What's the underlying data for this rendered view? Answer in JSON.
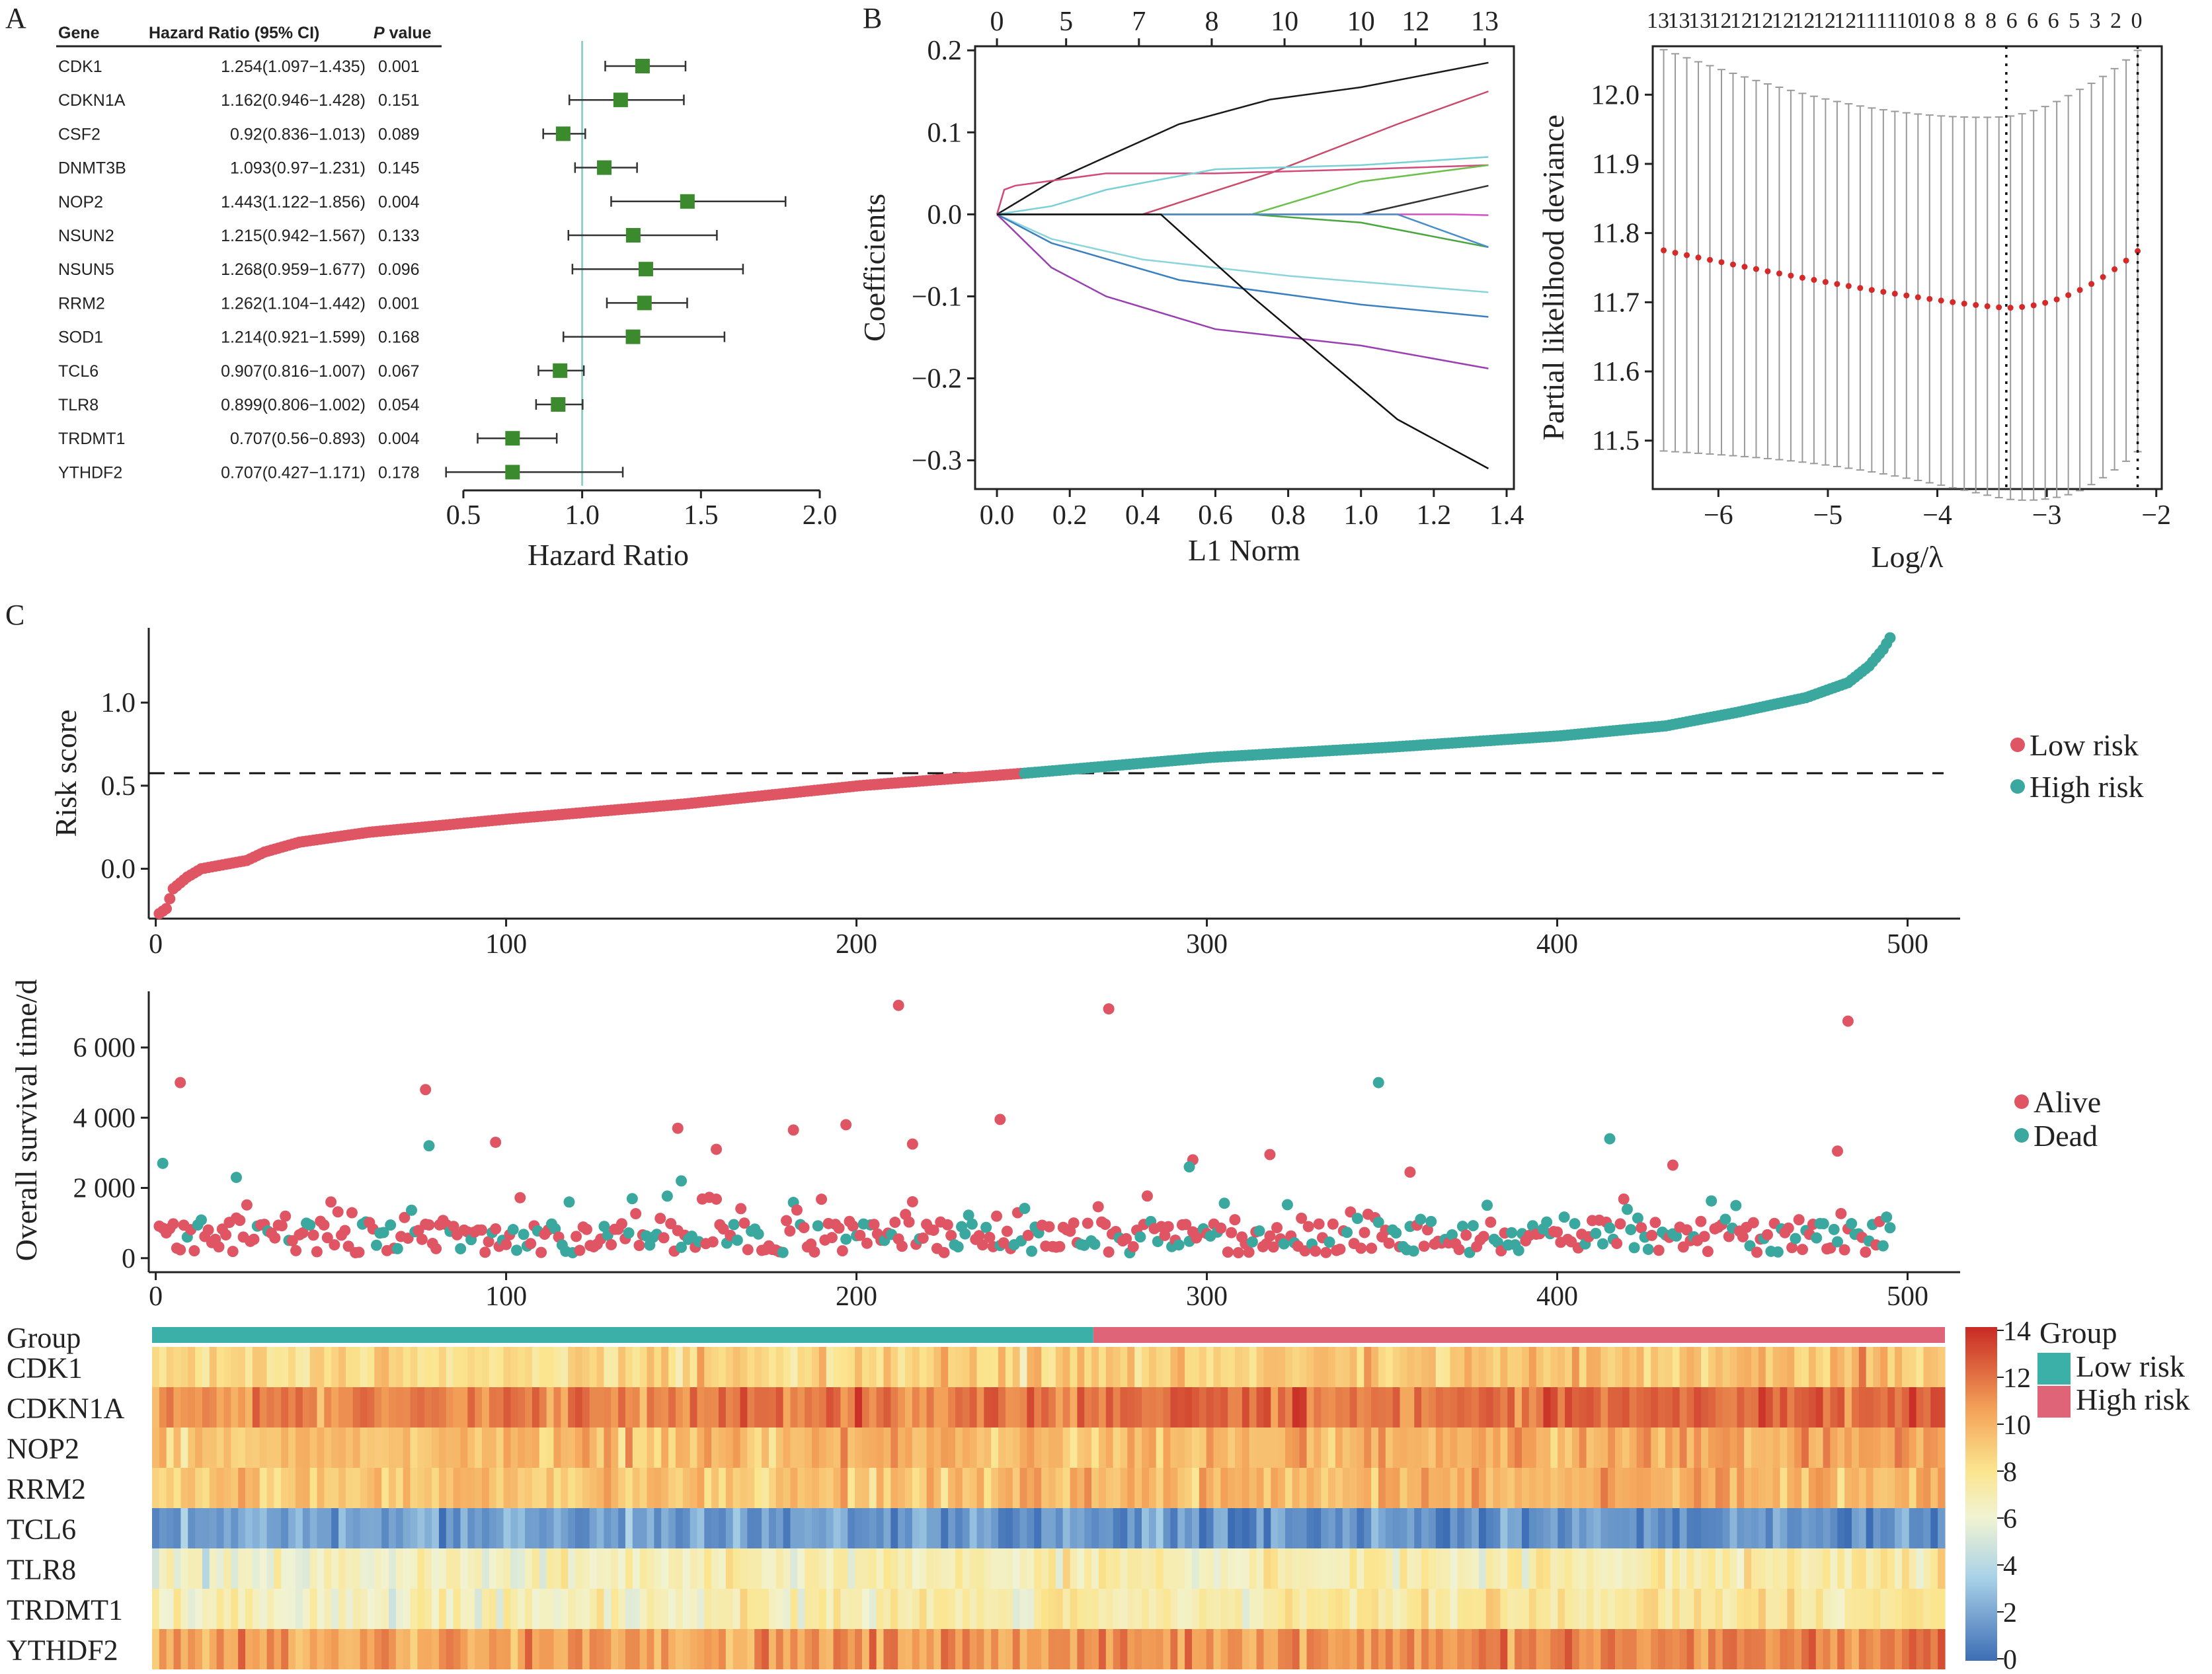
{
  "figure": {
    "panel_labels": {
      "A": "A",
      "B": "B",
      "C": "C"
    }
  },
  "chart_data": [
    {
      "id": "forest",
      "type": "forest",
      "table_headers": {
        "gene": "Gene",
        "hr": "Hazard Ratio (95% CI)",
        "p_italic": "P",
        "p_rest": " value"
      },
      "rows": [
        {
          "gene": "CDK1",
          "hr_text": "1.254(1.097−1.435)",
          "p_text": "0.001",
          "hr": 1.254,
          "lo": 1.097,
          "hi": 1.435
        },
        {
          "gene": "CDKN1A",
          "hr_text": "1.162(0.946−1.428)",
          "p_text": "0.151",
          "hr": 1.162,
          "lo": 0.946,
          "hi": 1.428
        },
        {
          "gene": "CSF2",
          "hr_text": "0.92(0.836−1.013)",
          "p_text": "0.089",
          "hr": 0.92,
          "lo": 0.836,
          "hi": 1.013
        },
        {
          "gene": "DNMT3B",
          "hr_text": "1.093(0.97−1.231)",
          "p_text": "0.145",
          "hr": 1.093,
          "lo": 0.97,
          "hi": 1.231
        },
        {
          "gene": "NOP2",
          "hr_text": "1.443(1.122−1.856)",
          "p_text": "0.004",
          "hr": 1.443,
          "lo": 1.122,
          "hi": 1.856
        },
        {
          "gene": "NSUN2",
          "hr_text": "1.215(0.942−1.567)",
          "p_text": "0.133",
          "hr": 1.215,
          "lo": 0.942,
          "hi": 1.567
        },
        {
          "gene": "NSUN5",
          "hr_text": "1.268(0.959−1.677)",
          "p_text": "0.096",
          "hr": 1.268,
          "lo": 0.959,
          "hi": 1.677
        },
        {
          "gene": "RRM2",
          "hr_text": "1.262(1.104−1.442)",
          "p_text": "0.001",
          "hr": 1.262,
          "lo": 1.104,
          "hi": 1.442
        },
        {
          "gene": "SOD1",
          "hr_text": "1.214(0.921−1.599)",
          "p_text": "0.168",
          "hr": 1.214,
          "lo": 0.921,
          "hi": 1.599
        },
        {
          "gene": "TCL6",
          "hr_text": "0.907(0.816−1.007)",
          "p_text": "0.067",
          "hr": 0.907,
          "lo": 0.816,
          "hi": 1.007
        },
        {
          "gene": "TLR8",
          "hr_text": "0.899(0.806−1.002)",
          "p_text": "0.054",
          "hr": 0.899,
          "lo": 0.806,
          "hi": 1.002
        },
        {
          "gene": "TRDMT1",
          "hr_text": "0.707(0.56−0.893)",
          "p_text": "0.004",
          "hr": 0.707,
          "lo": 0.56,
          "hi": 0.893
        },
        {
          "gene": "YTHDF2",
          "hr_text": "0.707(0.427−1.171)",
          "p_text": "0.178",
          "hr": 0.707,
          "lo": 0.427,
          "hi": 1.171
        }
      ],
      "xlabel": "Hazard Ratio",
      "xlim": [
        0.4,
        2.0
      ],
      "xticks": [
        0.5,
        1.0,
        1.5,
        2.0
      ],
      "xtick_labels": [
        "0.5",
        "1.0",
        "1.5",
        "2.0"
      ],
      "reference_line": 1.0,
      "marker_color": "#3b8a2e",
      "reference_color": "#8fd0c2"
    },
    {
      "id": "lasso_coef",
      "type": "line",
      "xlabel": "L1 Norm",
      "ylabel": "Coefficients",
      "xlim": [
        -0.06,
        1.42
      ],
      "ylim": [
        -0.335,
        0.205
      ],
      "xticks": [
        0.0,
        0.2,
        0.4,
        0.6,
        0.8,
        1.0,
        1.2,
        1.4
      ],
      "xtick_labels": [
        "0.0",
        "0.2",
        "0.4",
        "0.6",
        "0.8",
        "1.0",
        "1.2",
        "1.4"
      ],
      "yticks": [
        -0.3,
        -0.2,
        -0.1,
        0.0,
        0.1,
        0.2
      ],
      "ytick_labels": [
        "−0.3",
        "−0.2",
        "−0.1",
        "0.0",
        "0.1",
        "0.2"
      ],
      "top_ticks": [
        0.0,
        0.19,
        0.39,
        0.59,
        0.79,
        1.0,
        1.15,
        1.34
      ],
      "top_tick_labels": [
        "0",
        "5",
        "7",
        "8",
        "10",
        "10",
        "12",
        "13"
      ],
      "series": [
        {
          "color": "#1a1a1a",
          "x": [
            0,
            0.15,
            0.5,
            0.75,
            1.0,
            1.35
          ],
          "y": [
            0,
            0.04,
            0.11,
            0.14,
            0.155,
            0.185
          ]
        },
        {
          "color": "#c94a6a",
          "x": [
            0,
            0.4,
            0.75,
            1.1,
            1.35
          ],
          "y": [
            0,
            0,
            0.05,
            0.11,
            0.15
          ]
        },
        {
          "color": "#d24a7a",
          "x": [
            0,
            0.02,
            0.05,
            0.3,
            0.6,
            1.0,
            1.35
          ],
          "y": [
            0,
            0.03,
            0.035,
            0.05,
            0.05,
            0.055,
            0.06
          ]
        },
        {
          "color": "#7ad0d8",
          "x": [
            0,
            0.15,
            0.3,
            0.6,
            1.0,
            1.35
          ],
          "y": [
            0,
            0.01,
            0.03,
            0.055,
            0.06,
            0.07
          ]
        },
        {
          "color": "#6cbf4a",
          "x": [
            0,
            0.7,
            1.0,
            1.35
          ],
          "y": [
            0,
            0,
            0.04,
            0.06
          ]
        },
        {
          "color": "#333333",
          "x": [
            0,
            1.0,
            1.35
          ],
          "y": [
            0,
            0,
            0.035
          ]
        },
        {
          "color": "#d451c4",
          "x": [
            0,
            1.25,
            1.35
          ],
          "y": [
            0,
            0,
            -0.001
          ]
        },
        {
          "color": "#4aa63e",
          "x": [
            0,
            0.7,
            1.0,
            1.35
          ],
          "y": [
            0,
            0,
            -0.01,
            -0.04
          ]
        },
        {
          "color": "#4a8dc9",
          "x": [
            0,
            1.1,
            1.35
          ],
          "y": [
            0,
            0,
            -0.04
          ]
        },
        {
          "color": "#8ad4dc",
          "x": [
            0,
            0.15,
            0.4,
            0.8,
            1.35
          ],
          "y": [
            0,
            -0.03,
            -0.055,
            -0.075,
            -0.095
          ]
        },
        {
          "color": "#3a7fc0",
          "x": [
            0,
            0.15,
            0.5,
            1.0,
            1.35
          ],
          "y": [
            0,
            -0.035,
            -0.08,
            -0.11,
            -0.125
          ]
        },
        {
          "color": "#9a3fb0",
          "x": [
            0,
            0.15,
            0.3,
            0.6,
            1.0,
            1.35
          ],
          "y": [
            0,
            -0.065,
            -0.1,
            -0.14,
            -0.16,
            -0.188
          ]
        },
        {
          "color": "#111111",
          "x": [
            0,
            0.45,
            0.7,
            1.1,
            1.35
          ],
          "y": [
            0,
            0,
            -0.1,
            -0.25,
            -0.31
          ]
        }
      ]
    },
    {
      "id": "lasso_cv",
      "type": "scatter",
      "xlabel": "Log/λ",
      "ylabel": "Partial likelihood deviance",
      "xlim": [
        -6.6,
        -1.95
      ],
      "ylim": [
        11.43,
        12.07
      ],
      "xticks": [
        -6,
        -5,
        -4,
        -3,
        -2
      ],
      "xtick_labels": [
        "−6",
        "−5",
        "−4",
        "−3",
        "−2"
      ],
      "yticks": [
        11.5,
        11.6,
        11.7,
        11.8,
        11.9,
        12.0
      ],
      "ytick_labels": [
        "11.5",
        "11.6",
        "11.7",
        "11.8",
        "11.9",
        "12.0"
      ],
      "top_labels": [
        "13",
        "13",
        "13",
        "12",
        "12",
        "12",
        "12",
        "12",
        "12",
        "12",
        "11",
        "11",
        "10",
        "10",
        "8",
        "8",
        "8",
        "6",
        "6",
        "6",
        "5",
        "3",
        "2",
        "0"
      ],
      "vlines": [
        -3.37,
        -2.17
      ],
      "curve": {
        "x0": -6.5,
        "x1": -2.17,
        "n": 42,
        "min_x": -3.37,
        "y_start": 11.775,
        "y_min": 11.692,
        "y_end": 11.774
      },
      "error_half": {
        "min": 0.263,
        "max": 0.29
      },
      "point_color": "#d42a2a",
      "bar_color": "#9a9a9a"
    },
    {
      "id": "risk_score",
      "type": "scatter",
      "ylabel": "Risk score",
      "n": 495,
      "xlim": [
        -2,
        515
      ],
      "ylim": [
        -0.3,
        1.45
      ],
      "xticks": [
        0,
        100,
        200,
        300,
        400,
        500
      ],
      "xtick_labels": [
        "0",
        "100",
        "200",
        "300",
        "400",
        "500"
      ],
      "yticks": [
        0.0,
        0.5,
        1.0
      ],
      "ytick_labels": [
        "0.0",
        "0.5",
        "1.0"
      ],
      "cutoff": 0.575,
      "split_index": 247,
      "anchors": [
        [
          0,
          -0.27
        ],
        [
          2,
          -0.24
        ],
        [
          4,
          -0.12
        ],
        [
          8,
          -0.05
        ],
        [
          12,
          0.0
        ],
        [
          25,
          0.05
        ],
        [
          30,
          0.1
        ],
        [
          40,
          0.16
        ],
        [
          60,
          0.22
        ],
        [
          100,
          0.3
        ],
        [
          150,
          0.39
        ],
        [
          200,
          0.5
        ],
        [
          247,
          0.575
        ],
        [
          300,
          0.67
        ],
        [
          350,
          0.73
        ],
        [
          400,
          0.8
        ],
        [
          430,
          0.86
        ],
        [
          450,
          0.94
        ],
        [
          470,
          1.03
        ],
        [
          482,
          1.12
        ],
        [
          488,
          1.22
        ],
        [
          492,
          1.32
        ],
        [
          494,
          1.39
        ]
      ],
      "legend": [
        "Low risk",
        "High risk"
      ],
      "colors": {
        "low": "#e05563",
        "high": "#3aa89e"
      }
    },
    {
      "id": "survival",
      "type": "scatter",
      "ylabel": "Overall survival time/d",
      "xlim": [
        -2,
        515
      ],
      "ylim": [
        -400,
        7600
      ],
      "xticks": [
        0,
        100,
        200,
        300,
        400,
        500
      ],
      "xtick_labels": [
        "0",
        "100",
        "200",
        "300",
        "400",
        "500"
      ],
      "yticks": [
        0,
        2000,
        4000,
        6000
      ],
      "ytick_labels": [
        "0",
        "2 000",
        "4 000",
        "6 000"
      ],
      "legend": [
        "Alive",
        "Dead"
      ],
      "colors": {
        "alive": "#e05563",
        "dead": "#3aa89e"
      },
      "highlights_alive": [
        [
          7,
          5000
        ],
        [
          77,
          4800
        ],
        [
          97,
          3300
        ],
        [
          149,
          3700
        ],
        [
          160,
          3100
        ],
        [
          182,
          3650
        ],
        [
          197,
          3800
        ],
        [
          212,
          7200
        ],
        [
          216,
          3250
        ],
        [
          241,
          3950
        ],
        [
          272,
          7100
        ],
        [
          296,
          2800
        ],
        [
          318,
          2950
        ],
        [
          358,
          2450
        ],
        [
          483,
          6750
        ],
        [
          480,
          3050
        ],
        [
          433,
          2650
        ]
      ],
      "highlights_dead": [
        [
          2,
          2700
        ],
        [
          78,
          3200
        ],
        [
          349,
          5000
        ],
        [
          415,
          3400
        ],
        [
          23,
          2300
        ],
        [
          150,
          2200
        ],
        [
          295,
          2600
        ]
      ]
    },
    {
      "id": "heatmap",
      "type": "heatmap",
      "rows": [
        "Group",
        "CDK1",
        "CDKN1A",
        "NOP2",
        "RRM2",
        "TCL6",
        "TLR8",
        "TRDMT1",
        "YTHDF2"
      ],
      "group_split_fraction": 0.525,
      "group_colors": {
        "low": "#3ab0a8",
        "high": "#df6478"
      },
      "colorbar": {
        "ticks": [
          "0",
          "2",
          "4",
          "6",
          "8",
          "10",
          "12",
          "14"
        ],
        "min": 0,
        "max": 14
      },
      "legend_title": "Group",
      "legend": [
        "Low risk",
        "High risk"
      ],
      "gene_means": {
        "CDK1": 8.8,
        "CDKN1A": 11.8,
        "NOP2": 9.8,
        "RRM2": 9.6,
        "TCL6": 1.5,
        "TLR8": 6.8,
        "TRDMT1": 7.2,
        "YTHDF2": 10.9
      }
    }
  ]
}
